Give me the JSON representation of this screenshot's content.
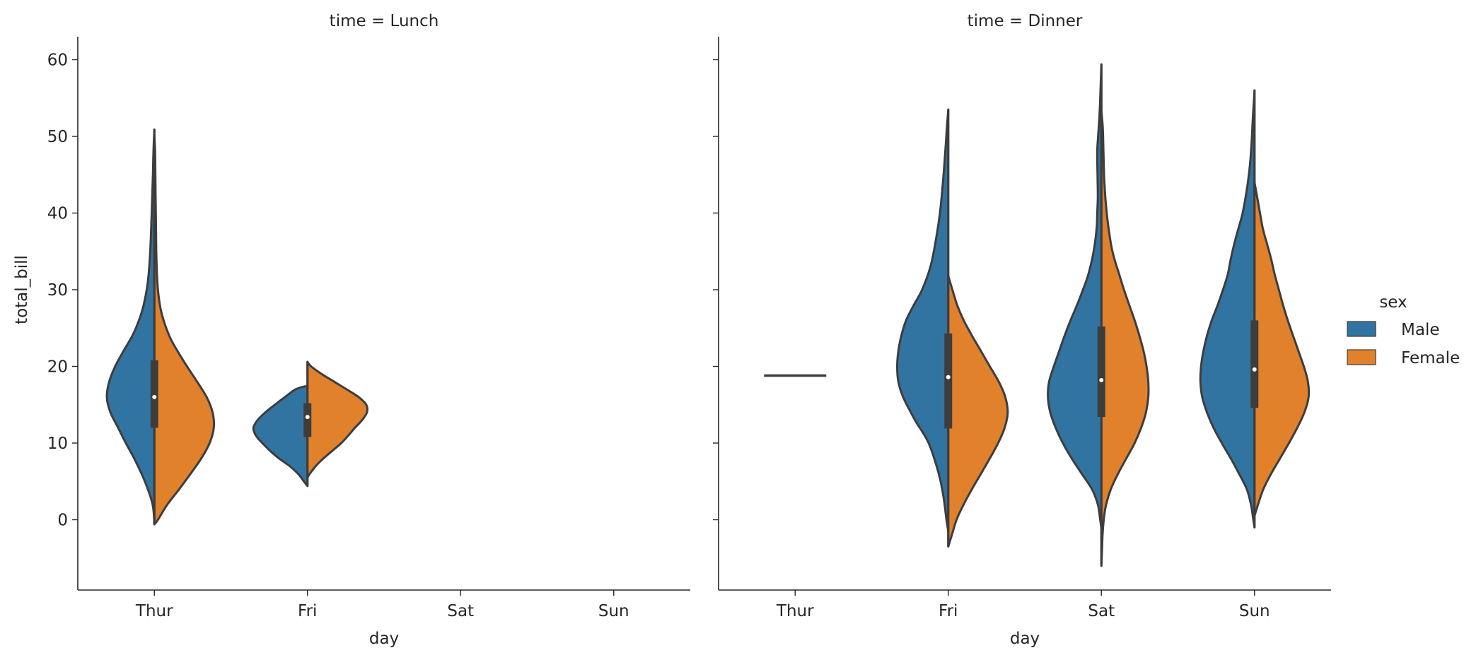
{
  "chart_data": {
    "type": "violin",
    "split": true,
    "hue_title": "sex",
    "legend_position": "center-right",
    "grid": false,
    "xlabel": "day",
    "ylabel": "total_bill",
    "categories": [
      "Thur",
      "Fri",
      "Sat",
      "Sun"
    ],
    "y_ticks": [
      0,
      10,
      20,
      30,
      40,
      50,
      60
    ],
    "ylim": [
      -9,
      63
    ],
    "series": [
      {
        "name": "Male",
        "color": "#3274a1"
      },
      {
        "name": "Female",
        "color": "#e1812c"
      }
    ],
    "panels": [
      {
        "title": "time = Lunch",
        "violins": [
          {
            "day": "Thur",
            "male": [
              [
                -0.6,
                0.0
              ],
              [
                2,
                0.03
              ],
              [
                5,
                0.16
              ],
              [
                8,
                0.34
              ],
              [
                10,
                0.48
              ],
              [
                12,
                0.61
              ],
              [
                14,
                0.74
              ],
              [
                16,
                0.8
              ],
              [
                18,
                0.76
              ],
              [
                20,
                0.66
              ],
              [
                22,
                0.52
              ],
              [
                24,
                0.37
              ],
              [
                26,
                0.26
              ],
              [
                28,
                0.18
              ],
              [
                31,
                0.11
              ],
              [
                35,
                0.07
              ],
              [
                40,
                0.045
              ],
              [
                45,
                0.025
              ],
              [
                48,
                0.015
              ],
              [
                50.9,
                0.0
              ]
            ],
            "female": [
              [
                -0.6,
                0.0
              ],
              [
                0,
                0.06
              ],
              [
                2,
                0.22
              ],
              [
                4,
                0.42
              ],
              [
                6,
                0.61
              ],
              [
                8,
                0.79
              ],
              [
                10,
                0.93
              ],
              [
                12,
                1.0
              ],
              [
                14,
                0.98
              ],
              [
                16,
                0.88
              ],
              [
                18,
                0.72
              ],
              [
                20,
                0.55
              ],
              [
                22,
                0.39
              ],
              [
                24,
                0.25
              ],
              [
                27,
                0.12
              ],
              [
                30,
                0.06
              ],
              [
                34,
                0.035
              ],
              [
                40,
                0.025
              ],
              [
                44,
                0.018
              ],
              [
                48,
                0.012
              ],
              [
                50,
                0.0
              ]
            ],
            "quartiles": [
              12,
              16,
              20.8
            ]
          },
          {
            "day": "Fri",
            "male": [
              [
                4.4,
                0.0
              ],
              [
                5,
                0.06
              ],
              [
                6,
                0.16
              ],
              [
                7,
                0.3
              ],
              [
                8,
                0.48
              ],
              [
                9,
                0.63
              ],
              [
                10,
                0.76
              ],
              [
                11,
                0.87
              ],
              [
                12,
                0.91
              ],
              [
                13,
                0.84
              ],
              [
                14,
                0.71
              ],
              [
                15,
                0.55
              ],
              [
                16,
                0.38
              ],
              [
                17,
                0.2
              ],
              [
                17.4,
                0.04
              ]
            ],
            "female": [
              [
                5.5,
                0.0
              ],
              [
                6,
                0.04
              ],
              [
                7,
                0.14
              ],
              [
                8,
                0.27
              ],
              [
                9,
                0.42
              ],
              [
                10,
                0.57
              ],
              [
                11,
                0.69
              ],
              [
                12,
                0.8
              ],
              [
                13,
                0.92
              ],
              [
                14,
                1.0
              ],
              [
                15,
                0.99
              ],
              [
                16,
                0.86
              ],
              [
                17,
                0.66
              ],
              [
                18,
                0.45
              ],
              [
                19,
                0.24
              ],
              [
                20,
                0.06
              ],
              [
                20.6,
                0.0
              ]
            ],
            "quartiles": [
              10.8,
              13.4,
              15.2
            ]
          }
        ]
      },
      {
        "title": "time = Dinner",
        "violins": [
          {
            "day": "Thur",
            "single_value": 18.8
          },
          {
            "day": "Fri",
            "male": [
              [
                -1.5,
                0.0
              ],
              [
                0,
                0.03
              ],
              [
                3,
                0.08
              ],
              [
                6,
                0.16
              ],
              [
                10,
                0.33
              ],
              [
                13,
                0.56
              ],
              [
                16,
                0.76
              ],
              [
                18,
                0.84
              ],
              [
                20,
                0.86
              ],
              [
                22,
                0.84
              ],
              [
                24,
                0.79
              ],
              [
                26,
                0.71
              ],
              [
                28,
                0.58
              ],
              [
                30,
                0.44
              ],
              [
                33,
                0.3
              ],
              [
                36,
                0.22
              ],
              [
                40,
                0.14
              ],
              [
                44,
                0.09
              ],
              [
                48,
                0.05
              ],
              [
                51,
                0.025
              ],
              [
                53.5,
                0.0
              ]
            ],
            "female": [
              [
                -3.5,
                0.0
              ],
              [
                -2,
                0.06
              ],
              [
                0,
                0.14
              ],
              [
                2,
                0.26
              ],
              [
                4,
                0.4
              ],
              [
                6,
                0.55
              ],
              [
                8,
                0.7
              ],
              [
                10,
                0.84
              ],
              [
                12,
                0.95
              ],
              [
                14,
                1.0
              ],
              [
                16,
                0.96
              ],
              [
                18,
                0.85
              ],
              [
                20,
                0.7
              ],
              [
                22,
                0.55
              ],
              [
                24,
                0.4
              ],
              [
                26,
                0.26
              ],
              [
                28,
                0.15
              ],
              [
                30,
                0.07
              ],
              [
                31.8,
                0.0
              ]
            ],
            "quartiles": [
              11.9,
              18.6,
              24.3
            ]
          },
          {
            "day": "Sat",
            "male": [
              [
                -1.2,
                0.0
              ],
              [
                0,
                0.02
              ],
              [
                2,
                0.06
              ],
              [
                4,
                0.16
              ],
              [
                6,
                0.33
              ],
              [
                8,
                0.5
              ],
              [
                10,
                0.65
              ],
              [
                12,
                0.77
              ],
              [
                14,
                0.86
              ],
              [
                16,
                0.9
              ],
              [
                18,
                0.88
              ],
              [
                20,
                0.8
              ],
              [
                22,
                0.71
              ],
              [
                24,
                0.62
              ],
              [
                26,
                0.52
              ],
              [
                28,
                0.41
              ],
              [
                30,
                0.31
              ],
              [
                32,
                0.22
              ],
              [
                35,
                0.13
              ],
              [
                38,
                0.08
              ],
              [
                40,
                0.07
              ],
              [
                42,
                0.06
              ],
              [
                45,
                0.065
              ],
              [
                48,
                0.07
              ],
              [
                50,
                0.055
              ],
              [
                53,
                0.03
              ],
              [
                56,
                0.015
              ],
              [
                59.4,
                0.0
              ]
            ],
            "female": [
              [
                -6,
                0.0
              ],
              [
                -4,
                0.01
              ],
              [
                -2,
                0.02
              ],
              [
                0,
                0.04
              ],
              [
                2,
                0.08
              ],
              [
                4,
                0.16
              ],
              [
                6,
                0.28
              ],
              [
                8,
                0.42
              ],
              [
                10,
                0.56
              ],
              [
                12,
                0.67
              ],
              [
                14,
                0.75
              ],
              [
                16,
                0.79
              ],
              [
                18,
                0.79
              ],
              [
                20,
                0.76
              ],
              [
                22,
                0.71
              ],
              [
                24,
                0.64
              ],
              [
                26,
                0.56
              ],
              [
                28,
                0.47
              ],
              [
                30,
                0.38
              ],
              [
                32,
                0.3
              ],
              [
                34,
                0.22
              ],
              [
                36,
                0.16
              ],
              [
                40,
                0.09
              ],
              [
                44,
                0.05
              ],
              [
                48,
                0.035
              ],
              [
                51,
                0.025
              ],
              [
                53.3,
                0.0
              ]
            ],
            "quartiles": [
              13.4,
              18.2,
              25.2
            ]
          },
          {
            "day": "Sun",
            "male": [
              [
                -1,
                0.0
              ],
              [
                0,
                0.02
              ],
              [
                2,
                0.06
              ],
              [
                4,
                0.13
              ],
              [
                6,
                0.26
              ],
              [
                8,
                0.4
              ],
              [
                10,
                0.55
              ],
              [
                12,
                0.69
              ],
              [
                14,
                0.8
              ],
              [
                16,
                0.88
              ],
              [
                18,
                0.91
              ],
              [
                20,
                0.9
              ],
              [
                22,
                0.86
              ],
              [
                24,
                0.8
              ],
              [
                26,
                0.72
              ],
              [
                28,
                0.62
              ],
              [
                30,
                0.53
              ],
              [
                32,
                0.45
              ],
              [
                34,
                0.4
              ],
              [
                36,
                0.34
              ],
              [
                38,
                0.27
              ],
              [
                40,
                0.2
              ],
              [
                43,
                0.13
              ],
              [
                46,
                0.08
              ],
              [
                49,
                0.05
              ],
              [
                52,
                0.03
              ],
              [
                56,
                0.0
              ]
            ],
            "female": [
              [
                0.5,
                0.0
              ],
              [
                2,
                0.06
              ],
              [
                4,
                0.15
              ],
              [
                6,
                0.28
              ],
              [
                8,
                0.43
              ],
              [
                10,
                0.58
              ],
              [
                12,
                0.72
              ],
              [
                14,
                0.84
              ],
              [
                16,
                0.91
              ],
              [
                18,
                0.9
              ],
              [
                20,
                0.83
              ],
              [
                22,
                0.74
              ],
              [
                24,
                0.65
              ],
              [
                26,
                0.56
              ],
              [
                28,
                0.48
              ],
              [
                30,
                0.41
              ],
              [
                32,
                0.34
              ],
              [
                34,
                0.28
              ],
              [
                36,
                0.21
              ],
              [
                38,
                0.14
              ],
              [
                41,
                0.07
              ],
              [
                44,
                0.0
              ]
            ],
            "quartiles": [
              14.6,
              19.6,
              26
            ]
          }
        ]
      }
    ]
  }
}
